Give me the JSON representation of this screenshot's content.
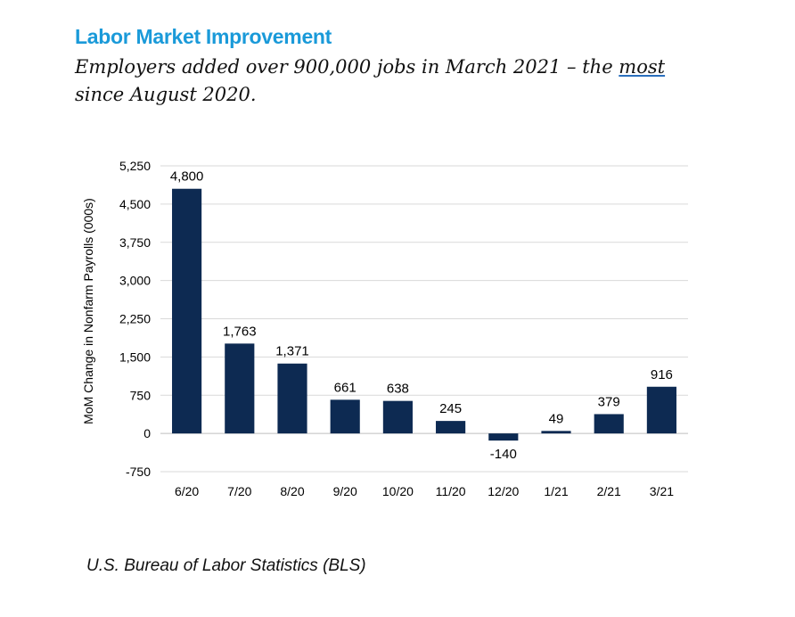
{
  "header": {
    "title": "Labor Market Improvement",
    "subtitle_part1": "Employers added over 900,000 jobs in March 2021 – the ",
    "subtitle_highlight": "most",
    "subtitle_part2": "since August 2020."
  },
  "footer": {
    "source": "U.S. Bureau of Labor Statistics (BLS)"
  },
  "colors": {
    "bar": "#0d2a52",
    "title": "#1a9ad9",
    "grid": "#d9d9d9"
  },
  "chart_data": {
    "type": "bar",
    "title": "",
    "xlabel": "",
    "ylabel": "MoM Change in Nonfarm Payrolls (000s)",
    "categories": [
      "6/20",
      "7/20",
      "8/20",
      "9/20",
      "10/20",
      "11/20",
      "12/20",
      "1/21",
      "2/21",
      "3/21"
    ],
    "values": [
      4800,
      1763,
      1371,
      661,
      638,
      245,
      -140,
      49,
      379,
      916
    ],
    "data_labels": [
      "4,800",
      "1,763",
      "1,371",
      "661",
      "638",
      "245",
      "-140",
      "49",
      "379",
      "916"
    ],
    "ylim": [
      -750,
      5250
    ],
    "yticks": [
      -750,
      0,
      750,
      1500,
      2250,
      3000,
      3750,
      4500,
      5250
    ],
    "ytick_labels": [
      "-750",
      "0",
      "750",
      "1,500",
      "2,250",
      "3,000",
      "3,750",
      "4,500",
      "5,250"
    ],
    "grid": true,
    "legend": "none"
  }
}
